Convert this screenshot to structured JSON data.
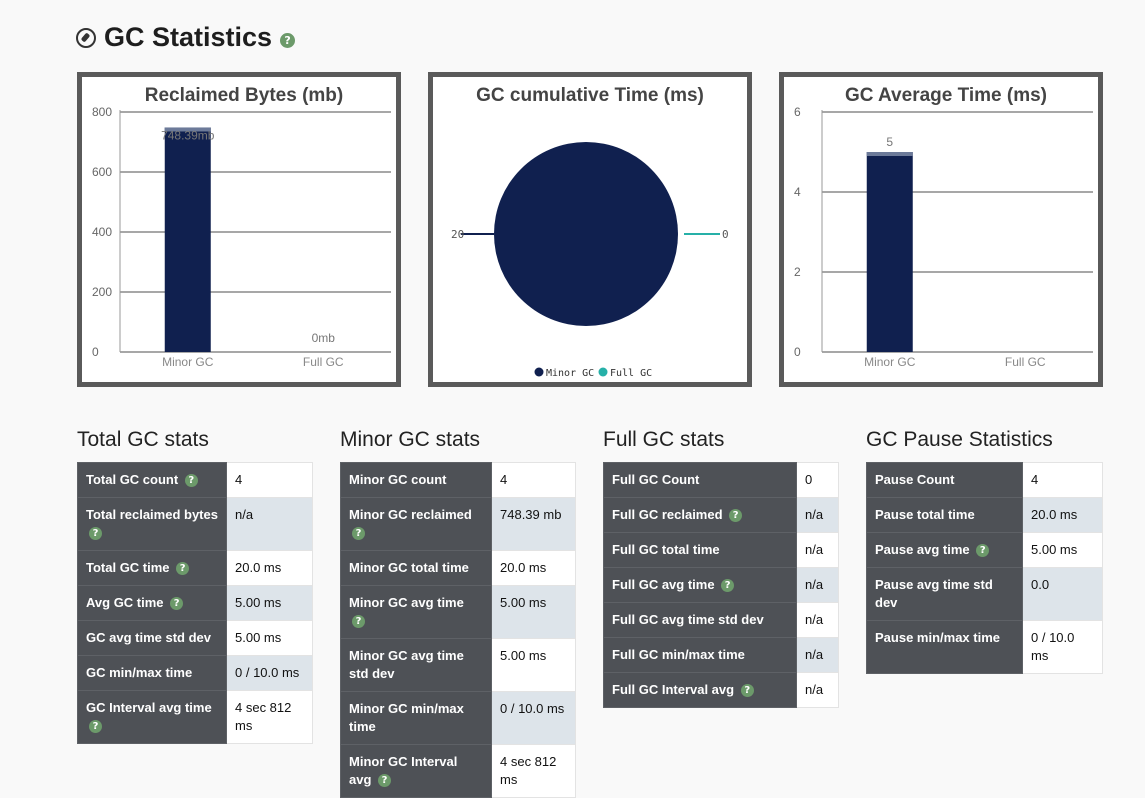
{
  "header": {
    "title": "GC Statistics",
    "icon": "compass-icon",
    "help_icon": "help-icon"
  },
  "chart_data": [
    {
      "type": "bar",
      "title": "Reclaimed Bytes (mb)",
      "categories": [
        "Minor GC",
        "Full GC"
      ],
      "values": [
        748.39,
        0
      ],
      "data_labels": [
        "748.39mb",
        "0mb"
      ],
      "ylim": [
        0,
        800
      ],
      "yticks": [
        0,
        200,
        400,
        600,
        800
      ],
      "ytick_labels": [
        "0",
        "200",
        "400",
        "600",
        "800"
      ],
      "grid": true,
      "color": "#10204f"
    },
    {
      "type": "pie",
      "title": "GC cumulative Time (ms)",
      "labels": [
        "Minor GC",
        "Full GC"
      ],
      "values": [
        20,
        0
      ],
      "data_labels": [
        "20",
        "0"
      ],
      "colors": [
        "#10204f",
        "#26b0a8"
      ],
      "legend": "bottom"
    },
    {
      "type": "bar",
      "title": "GC Average Time (ms)",
      "categories": [
        "Minor GC",
        "Full GC"
      ],
      "values": [
        5,
        0
      ],
      "data_labels": [
        "5",
        ""
      ],
      "ylim": [
        0,
        6
      ],
      "yticks": [
        0,
        2,
        4,
        6
      ],
      "ytick_labels": [
        "0",
        "2",
        "4",
        "6"
      ],
      "grid": true,
      "color": "#10204f"
    }
  ],
  "sections": [
    {
      "title": "Total GC stats",
      "rows": [
        {
          "key": "Total GC count",
          "value": "4",
          "help": true
        },
        {
          "key": "Total reclaimed bytes",
          "value": "n/a",
          "help": true
        },
        {
          "key": "Total GC time",
          "value": "20.0 ms",
          "help": true
        },
        {
          "key": "Avg GC time",
          "value": "5.00 ms",
          "help": true
        },
        {
          "key": "GC avg time std dev",
          "value": "5.00 ms",
          "help": false
        },
        {
          "key": "GC min/max time",
          "value": "0 / 10.0 ms",
          "help": false
        },
        {
          "key": "GC Interval avg time",
          "value": "4 sec 812 ms",
          "help": true
        }
      ]
    },
    {
      "title": "Minor GC stats",
      "rows": [
        {
          "key": "Minor GC count",
          "value": "4",
          "help": false
        },
        {
          "key": "Minor GC reclaimed",
          "value": "748.39 mb",
          "help": true
        },
        {
          "key": "Minor GC total time",
          "value": "20.0 ms",
          "help": false
        },
        {
          "key": "Minor GC avg time",
          "value": "5.00 ms",
          "help": true
        },
        {
          "key": "Minor GC avg time std dev",
          "value": "5.00 ms",
          "help": false
        },
        {
          "key": "Minor GC min/max time",
          "value": "0 / 10.0 ms",
          "help": false
        },
        {
          "key": "Minor GC Interval avg",
          "value": "4 sec 812 ms",
          "help": true
        }
      ]
    },
    {
      "title": "Full GC stats",
      "rows": [
        {
          "key": "Full GC Count",
          "value": "0",
          "help": false
        },
        {
          "key": "Full GC reclaimed",
          "value": "n/a",
          "help": true
        },
        {
          "key": "Full GC total time",
          "value": "n/a",
          "help": false
        },
        {
          "key": "Full GC avg time",
          "value": "n/a",
          "help": true
        },
        {
          "key": "Full GC avg time std dev",
          "value": "n/a",
          "help": false
        },
        {
          "key": "Full GC min/max time",
          "value": "n/a",
          "help": false
        },
        {
          "key": "Full GC Interval avg",
          "value": "n/a",
          "help": true
        }
      ]
    },
    {
      "title": "GC Pause Statistics",
      "rows": [
        {
          "key": "Pause Count",
          "value": "4",
          "help": false
        },
        {
          "key": "Pause total time",
          "value": "20.0 ms",
          "help": false
        },
        {
          "key": "Pause avg time",
          "value": "5.00 ms",
          "help": true
        },
        {
          "key": "Pause avg time std dev",
          "value": "0.0",
          "help": false
        },
        {
          "key": "Pause min/max time",
          "value": "0 / 10.0 ms",
          "help": false
        }
      ]
    }
  ],
  "help_glyph": "?"
}
